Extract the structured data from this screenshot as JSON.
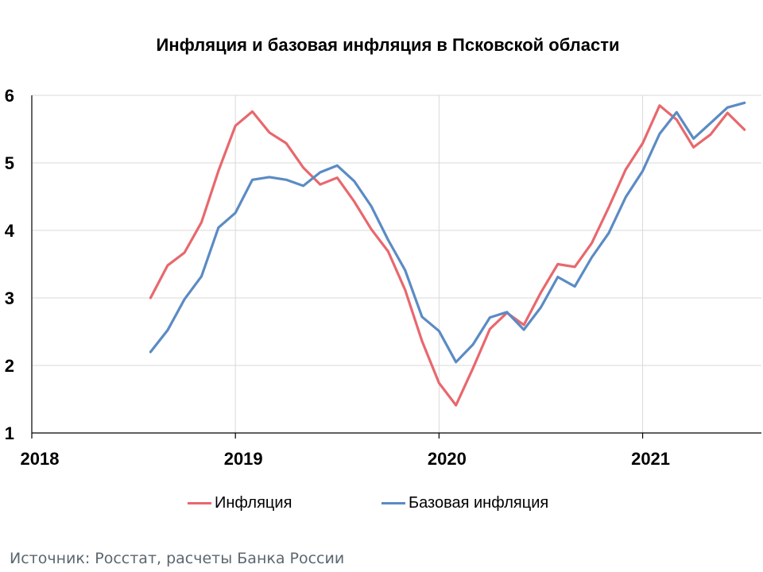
{
  "chart_data": {
    "type": "line",
    "title": "Инфляция и базовая инфляция в Псковской области",
    "xlabel": "",
    "ylabel": "",
    "ylim": [
      1,
      6
    ],
    "yticks": [
      "1",
      "2",
      "3",
      "4",
      "5",
      "6"
    ],
    "xticks": [
      "2018",
      "2019",
      "2020",
      "2021"
    ],
    "grid": true,
    "legend_position": "bottom",
    "x": [
      "2018-08",
      "2018-09",
      "2018-10",
      "2018-11",
      "2018-12",
      "2019-01",
      "2019-02",
      "2019-03",
      "2019-04",
      "2019-05",
      "2019-06",
      "2019-07",
      "2019-08",
      "2019-09",
      "2019-10",
      "2019-11",
      "2019-12",
      "2020-01",
      "2020-02",
      "2020-03",
      "2020-04",
      "2020-05",
      "2020-06",
      "2020-07",
      "2020-08",
      "2020-09",
      "2020-10",
      "2020-11",
      "2020-12",
      "2021-01",
      "2021-02",
      "2021-03",
      "2021-04",
      "2021-05",
      "2021-06",
      "2021-07"
    ],
    "series": [
      {
        "name": "Инфляция",
        "color": "#e8686d",
        "values": [
          3.0,
          3.48,
          3.67,
          4.12,
          4.88,
          5.55,
          5.76,
          5.45,
          5.29,
          4.93,
          4.68,
          4.78,
          4.43,
          4.02,
          3.69,
          3.12,
          2.36,
          1.74,
          1.41,
          1.96,
          2.54,
          2.78,
          2.6,
          3.08,
          3.5,
          3.46,
          3.81,
          4.34,
          4.9,
          5.29,
          5.85,
          5.64,
          5.23,
          5.42,
          5.74,
          5.49
        ]
      },
      {
        "name": "Базовая инфляция",
        "color": "#5b8bc4",
        "values": [
          2.2,
          2.52,
          2.98,
          3.32,
          4.04,
          4.26,
          4.75,
          4.79,
          4.75,
          4.66,
          4.86,
          4.96,
          4.73,
          4.36,
          3.86,
          3.41,
          2.72,
          2.51,
          2.05,
          2.31,
          2.71,
          2.79,
          2.53,
          2.86,
          3.31,
          3.17,
          3.6,
          3.96,
          4.49,
          4.88,
          5.43,
          5.75,
          5.36,
          5.59,
          5.82,
          5.89
        ]
      }
    ]
  },
  "source": "Источник: Росстат, расчеты Банка России"
}
